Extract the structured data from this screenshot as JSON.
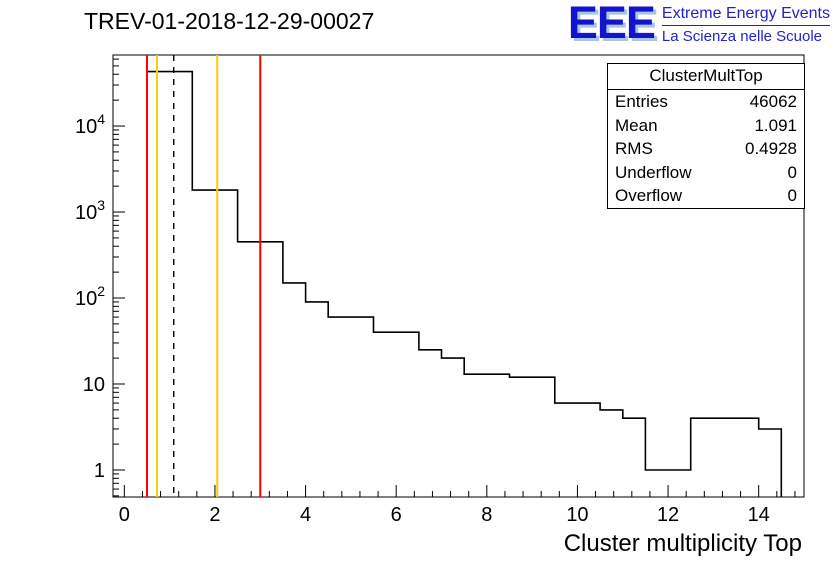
{
  "header": {
    "title": "TREV-01-2018-12-29-00027"
  },
  "logo": {
    "initials": "EEE",
    "line1": "Extreme Energy Events",
    "line2": "La Scienza nelle Scuole",
    "blue": "#2222cc"
  },
  "stats": {
    "title": "ClusterMultTop",
    "rows": [
      {
        "label": "Entries",
        "value": "46062"
      },
      {
        "label": "Mean",
        "value": "1.091"
      },
      {
        "label": "RMS",
        "value": "0.4928"
      },
      {
        "label": "Underflow",
        "value": "0"
      },
      {
        "label": "Overflow",
        "value": "0"
      }
    ]
  },
  "chart_data": {
    "type": "bar",
    "subtype": "step-histogram",
    "title": "TREV-01-2018-12-29-00027",
    "xlabel": "Cluster multiplicity Top",
    "ylabel": "",
    "y_scale": "log",
    "grid": false,
    "x_range": [
      -0.25,
      15.0
    ],
    "y_range": [
      0.485,
      67000
    ],
    "x_major_ticks": [
      0,
      2,
      4,
      6,
      8,
      10,
      12,
      14
    ],
    "x_minor_step": 0.4,
    "y_tick_labels": [
      {
        "v": 1,
        "base": "1"
      },
      {
        "v": 10,
        "base": "10"
      },
      {
        "v": 100,
        "base": "10",
        "exp": "2"
      },
      {
        "v": 1000,
        "base": "10",
        "exp": "3"
      },
      {
        "v": 10000,
        "base": "10",
        "exp": "4"
      }
    ],
    "line_color": "#000000",
    "bin_width": 0.5,
    "bins": [
      [
        0.5,
        43000
      ],
      [
        1.0,
        43000
      ],
      [
        1.5,
        1800
      ],
      [
        2.0,
        1800
      ],
      [
        2.5,
        450
      ],
      [
        3.0,
        450
      ],
      [
        3.5,
        150
      ],
      [
        4.0,
        90
      ],
      [
        4.5,
        60
      ],
      [
        5.0,
        60
      ],
      [
        5.5,
        40
      ],
      [
        6.0,
        40
      ],
      [
        6.5,
        25
      ],
      [
        7.0,
        20
      ],
      [
        7.5,
        13
      ],
      [
        8.0,
        13
      ],
      [
        8.5,
        12
      ],
      [
        9.0,
        12
      ],
      [
        9.5,
        6
      ],
      [
        10.0,
        6
      ],
      [
        10.5,
        5
      ],
      [
        11.0,
        4
      ],
      [
        11.5,
        1
      ],
      [
        12.0,
        1
      ],
      [
        12.5,
        4
      ],
      [
        13.0,
        4
      ],
      [
        13.5,
        4
      ],
      [
        14.0,
        3
      ]
    ],
    "marker_lines": [
      {
        "x": 0.5,
        "color": "#ff0000",
        "style": "solid"
      },
      {
        "x": 0.72,
        "color": "#ffcc00",
        "style": "solid"
      },
      {
        "x": 1.09,
        "color": "#000000",
        "style": "dashed"
      },
      {
        "x": 2.05,
        "color": "#ffcc00",
        "style": "solid"
      },
      {
        "x": 3.0,
        "color": "#ff0000",
        "style": "solid"
      }
    ]
  }
}
